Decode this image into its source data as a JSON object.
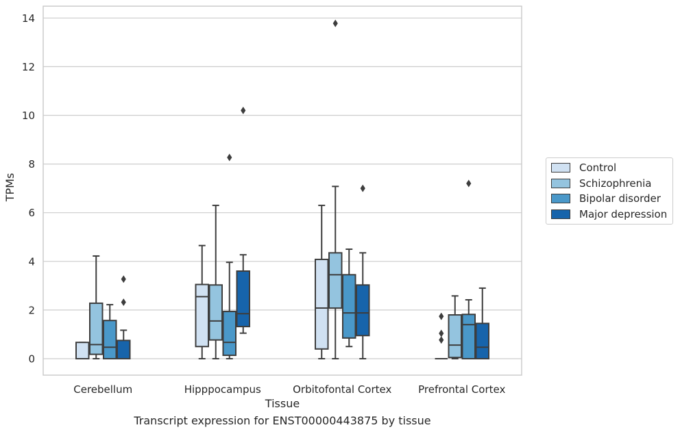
{
  "chart_data": {
    "type": "box",
    "title": "",
    "xlabel": "Tissue",
    "ylabel": "TPMs",
    "ylim": [
      -0.65,
      14.5
    ],
    "yticks": [
      0,
      2,
      4,
      6,
      8,
      10,
      12,
      14
    ],
    "grid": "horizontal",
    "legend_position": "right",
    "categories": [
      "Cerebellum",
      "Hipppocampus",
      "Orbitofontal Cortex",
      "Prefrontal Cortex"
    ],
    "series": [
      {
        "name": "Control",
        "color": "#d0e1f2",
        "boxes": [
          {
            "whislo": 0,
            "q1": 0,
            "med": 0,
            "q3": 0.67,
            "whishi": 0.67,
            "fliers": []
          },
          {
            "whislo": 0,
            "q1": 0.5,
            "med": 2.55,
            "q3": 3.05,
            "whishi": 4.65,
            "fliers": []
          },
          {
            "whislo": 0,
            "q1": 0.4,
            "med": 2.08,
            "q3": 4.08,
            "whishi": 6.3,
            "fliers": []
          },
          {
            "whislo": 0,
            "q1": 0,
            "med": 0,
            "q3": 0,
            "whishi": 0,
            "fliers": [
              0.77,
              1.04,
              1.74
            ]
          }
        ]
      },
      {
        "name": "Schizophrenia",
        "color": "#94c4df",
        "boxes": [
          {
            "whislo": 0,
            "q1": 0.18,
            "med": 0.58,
            "q3": 2.28,
            "whishi": 4.22,
            "fliers": []
          },
          {
            "whislo": 0,
            "q1": 0.77,
            "med": 1.55,
            "q3": 3.03,
            "whishi": 6.3,
            "fliers": []
          },
          {
            "whislo": 0,
            "q1": 2.08,
            "med": 3.45,
            "q3": 4.35,
            "whishi": 7.08,
            "fliers": [
              13.78
            ]
          },
          {
            "whislo": 0,
            "q1": 0.05,
            "med": 0.56,
            "q3": 1.8,
            "whishi": 2.58,
            "fliers": []
          }
        ]
      },
      {
        "name": "Bipolar disorder",
        "color": "#4a98c9",
        "boxes": [
          {
            "whislo": 0,
            "q1": 0,
            "med": 0.47,
            "q3": 1.57,
            "whishi": 2.22,
            "fliers": []
          },
          {
            "whislo": 0,
            "q1": 0.14,
            "med": 0.67,
            "q3": 1.94,
            "whishi": 3.96,
            "fliers": [
              8.27
            ]
          },
          {
            "whislo": 0.5,
            "q1": 0.85,
            "med": 1.88,
            "q3": 3.45,
            "whishi": 4.5,
            "fliers": []
          },
          {
            "whislo": 0,
            "q1": 0,
            "med": 1.4,
            "q3": 1.82,
            "whishi": 2.42,
            "fliers": [
              7.2
            ]
          }
        ]
      },
      {
        "name": "Major depression",
        "color": "#1764ab",
        "boxes": [
          {
            "whislo": 0,
            "q1": 0,
            "med": 0,
            "q3": 0.75,
            "whishi": 1.17,
            "fliers": [
              2.32,
              3.27
            ]
          },
          {
            "whislo": 1.05,
            "q1": 1.32,
            "med": 1.85,
            "q3": 3.6,
            "whishi": 4.27,
            "fliers": [
              10.2
            ]
          },
          {
            "whislo": 0,
            "q1": 0.95,
            "med": 1.88,
            "q3": 3.03,
            "whishi": 4.35,
            "fliers": [
              7.0
            ]
          },
          {
            "whislo": 0,
            "q1": 0,
            "med": 0.47,
            "q3": 1.45,
            "whishi": 2.9,
            "fliers": []
          }
        ]
      }
    ]
  },
  "caption": "Transcript expression for ENST00000443875 by tissue"
}
